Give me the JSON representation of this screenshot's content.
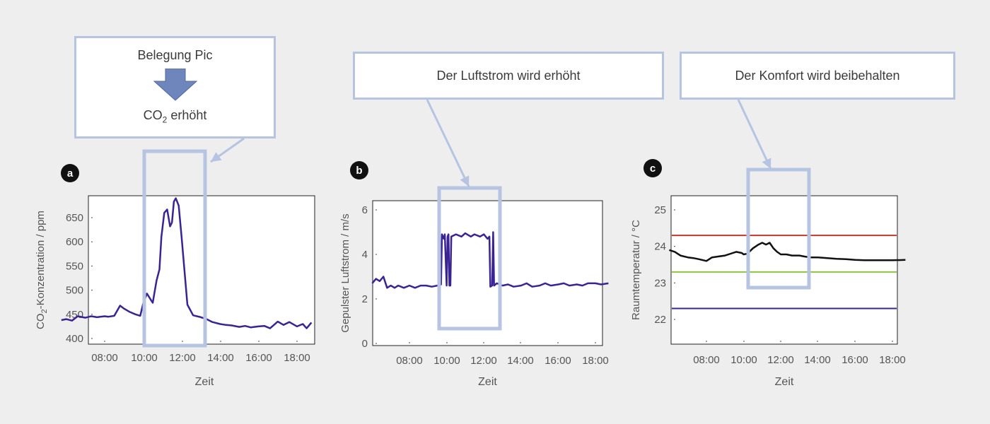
{
  "callouts": {
    "a": {
      "line1": "Belegung Pic",
      "line2_main": "CO",
      "line2_sub": "2",
      "line2_rest": " erhöht"
    },
    "b": {
      "text": "Der Luftstrom wird erhöht"
    },
    "c": {
      "text": "Der Komfort wird beibehalten"
    }
  },
  "colors": {
    "series": "#3a2392",
    "highlight": "#b6c4e1",
    "arrow": "#6f86bd",
    "upper_limit": "#c0392b",
    "lower_limit": "#8cc43d",
    "min_limit": "#3a2392",
    "temperature": "#111111"
  },
  "chart_data": [
    {
      "id": "a",
      "panel_label": "a",
      "type": "line",
      "xlabel": "Zeit",
      "ylabel_main": "CO",
      "ylabel_sub": "2",
      "ylabel_rest": "-Konzentration / ppm",
      "xticks": [
        "08:00",
        "10:00",
        "12:00",
        "14:00",
        "16:00",
        "18:00"
      ],
      "xtick_values": [
        8,
        10,
        12,
        14,
        16,
        18
      ],
      "xlim": [
        5.75,
        18.75
      ],
      "yticks": [
        400,
        450,
        500,
        550,
        600,
        650
      ],
      "ylim": [
        390,
        690
      ],
      "highlight_x": [
        9.15,
        11.55
      ],
      "series": [
        {
          "x": [
            5.75,
            6,
            6.3,
            6.6,
            7,
            7.3,
            7.6,
            8,
            8.2,
            8.5,
            8.8,
            9,
            9.3,
            9.6,
            9.85,
            10,
            10.2,
            10.4,
            10.5,
            10.7,
            10.85,
            10.95,
            11.1,
            11.25,
            11.4,
            11.5,
            11.6,
            11.7,
            11.85,
            12,
            12.3,
            12.6,
            13,
            13.3,
            13.6,
            14,
            14.3,
            14.6,
            15,
            15.3,
            15.6,
            16,
            16.3,
            16.6,
            17,
            17.3,
            17.6,
            18,
            18.3,
            18.5,
            18.75
          ],
          "values": [
            438,
            440,
            437,
            446,
            443,
            446,
            444,
            446,
            445,
            447,
            468,
            462,
            455,
            450,
            447,
            472,
            493,
            480,
            474,
            520,
            543,
            610,
            660,
            667,
            632,
            640,
            683,
            690,
            675,
            610,
            470,
            448,
            444,
            440,
            434,
            430,
            428,
            427,
            424,
            426,
            423,
            425,
            426,
            421,
            435,
            428,
            434,
            425,
            430,
            421,
            433
          ]
        }
      ]
    },
    {
      "id": "b",
      "panel_label": "b",
      "type": "line",
      "xlabel": "Zeit",
      "ylabel": "Gepulster Luftstrom / m/s",
      "xticks": [
        "08:00",
        "10:00",
        "12:00",
        "14:00",
        "16:00",
        "18:00"
      ],
      "xtick_values": [
        8,
        10,
        12,
        14,
        16,
        18
      ],
      "xlim": [
        6,
        18.7
      ],
      "yticks": [
        0,
        2,
        4,
        6
      ],
      "ylim": [
        -0.1,
        6.3
      ],
      "highlight_x": [
        9.55,
        11.95
      ],
      "series": [
        {
          "x": [
            6,
            6.2,
            6.4,
            6.6,
            6.8,
            7,
            7.2,
            7.4,
            7.7,
            8,
            8.3,
            8.6,
            8.9,
            9.2,
            9.5,
            9.7,
            9.75,
            9.85,
            9.9,
            10,
            10.05,
            10.1,
            10.15,
            10.2,
            10.25,
            10.5,
            10.8,
            11,
            11.3,
            11.5,
            11.8,
            12,
            12.2,
            12.3,
            12.35,
            12.45,
            12.5,
            12.55,
            12.7,
            13,
            13.3,
            13.6,
            14,
            14.3,
            14.6,
            15,
            15.3,
            15.6,
            16,
            16.3,
            16.6,
            17,
            17.3,
            17.6,
            18,
            18.3,
            18.7
          ],
          "values": [
            2.7,
            2.9,
            2.8,
            3.0,
            2.5,
            2.6,
            2.5,
            2.6,
            2.5,
            2.6,
            2.5,
            2.6,
            2.6,
            2.55,
            2.6,
            2.65,
            4.9,
            4.7,
            4.9,
            2.6,
            4.8,
            4.9,
            2.6,
            2.6,
            4.8,
            4.9,
            4.8,
            4.95,
            4.8,
            4.9,
            4.8,
            4.9,
            4.7,
            4.8,
            2.55,
            2.6,
            5.0,
            2.6,
            2.7,
            2.6,
            2.65,
            2.55,
            2.6,
            2.7,
            2.55,
            2.6,
            2.7,
            2.6,
            2.65,
            2.7,
            2.6,
            2.65,
            2.6,
            2.7,
            2.7,
            2.65,
            2.7
          ]
        }
      ]
    },
    {
      "id": "c",
      "panel_label": "c",
      "type": "line",
      "xlabel": "Zeit",
      "ylabel": "Raumtemperatur / °C",
      "xticks": [
        "08:00",
        "10:00",
        "12:00",
        "14:00",
        "16:00",
        "18:00"
      ],
      "xtick_values": [
        8,
        10,
        12,
        14,
        16,
        18
      ],
      "xlim": [
        6,
        18.7
      ],
      "yticks": [
        22,
        23,
        24,
        25
      ],
      "ylim": [
        21.35,
        25.35
      ],
      "highlight_x": [
        10.3,
        13.6
      ],
      "reference_lines": [
        {
          "value": 24.3,
          "color_key": "upper_limit"
        },
        {
          "value": 23.3,
          "color_key": "lower_limit"
        },
        {
          "value": 22.3,
          "color_key": "min_limit"
        }
      ],
      "series": [
        {
          "x": [
            6,
            6.3,
            6.6,
            7,
            7.3,
            7.6,
            8,
            8.3,
            8.6,
            9,
            9.3,
            9.6,
            9.9,
            10,
            10.2,
            10.5,
            10.8,
            11,
            11.2,
            11.4,
            11.6,
            11.8,
            12,
            12.3,
            12.6,
            13,
            13.3,
            13.6,
            14,
            14.5,
            15,
            15.5,
            16,
            16.5,
            17,
            17.5,
            18,
            18.7
          ],
          "values": [
            23.9,
            23.85,
            23.75,
            23.7,
            23.68,
            23.65,
            23.6,
            23.7,
            23.72,
            23.75,
            23.8,
            23.85,
            23.82,
            23.78,
            23.8,
            23.95,
            24.05,
            24.1,
            24.05,
            24.1,
            23.95,
            23.85,
            23.78,
            23.78,
            23.75,
            23.75,
            23.72,
            23.7,
            23.7,
            23.68,
            23.66,
            23.65,
            23.63,
            23.62,
            23.62,
            23.62,
            23.62,
            23.63
          ]
        }
      ]
    }
  ]
}
